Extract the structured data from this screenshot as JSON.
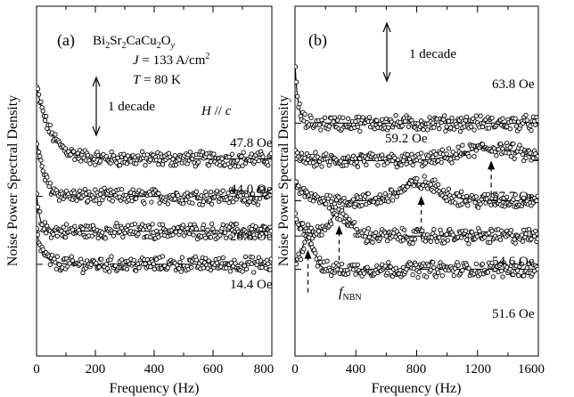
{
  "figure": {
    "ylabel": "Noise Power Spectral Density",
    "xlabel": "Frequency  (Hz)",
    "colors": {
      "axis": "#000000",
      "points": "#000000",
      "fit": "#000000"
    }
  },
  "chart_data": [
    {
      "type": "scatter",
      "panel_label": "(a)",
      "xlabel": "Frequency  (Hz)",
      "ylabel": "Noise Power Spectral Density",
      "xlim": [
        0,
        800
      ],
      "x_ticks": [
        "0",
        "200",
        "400",
        "600",
        "800"
      ],
      "log_scale_y": true,
      "scale_bar": "1 decade",
      "material": {
        "base": "Bi",
        "s1": "2",
        "b2": "Sr",
        "s2": "2",
        "b3": "CaCu",
        "s3": "2",
        "b4": "O",
        "s4": "y"
      },
      "conditions": {
        "J": {
          "sym": "J",
          "eq": " = 133 A/cm",
          "sup": "2"
        },
        "T": {
          "sym": "T",
          "eq": " = 80 K"
        },
        "H": {
          "sym": "H",
          "rel": " // ",
          "axis": "c"
        }
      },
      "series": [
        {
          "name": "47.8 Oe",
          "baseline": 0.4,
          "low_freq_amp": 1.35,
          "decay_hz": 48,
          "peak_hz": null,
          "peak_height": 0,
          "peak_width_hz": 0
        },
        {
          "name": "44.0 Oe",
          "baseline": -0.29,
          "low_freq_amp": 1.06,
          "decay_hz": 26,
          "peak_hz": null,
          "peak_height": 0,
          "peak_width_hz": 0
        },
        {
          "name": "28.8 Oe",
          "baseline": -0.93,
          "low_freq_amp": 0.7,
          "decay_hz": 11,
          "peak_hz": null,
          "peak_height": 0,
          "peak_width_hz": 0
        },
        {
          "name": "14.4 Oe",
          "baseline": -1.54,
          "low_freq_amp": 0.6,
          "decay_hz": 22,
          "peak_hz": null,
          "peak_height": 0,
          "peak_width_hz": 0
        }
      ]
    },
    {
      "type": "scatter",
      "panel_label": "(b)",
      "xlabel": "Frequency  (Hz)",
      "xlim": [
        0,
        1600
      ],
      "x_ticks": [
        "0",
        "400",
        "800",
        "1200",
        "1600"
      ],
      "log_scale_y": true,
      "scale_bar": "1 decade",
      "peak_label": {
        "base": "f",
        "sub": "NBN"
      },
      "series": [
        {
          "name": "63.8 Oe",
          "baseline": 1.06,
          "low_freq_amp": 1.1,
          "decay_hz": 20,
          "peak_hz": null,
          "peak_height": 0,
          "peak_width_hz": 0
        },
        {
          "name": "59.2 Oe",
          "baseline": 0.37,
          "low_freq_amp": 0.1,
          "decay_hz": 60,
          "peak_hz": 1290,
          "peak_height": 0.23,
          "peak_width_hz": 190
        },
        {
          "name": "57.7 Oe",
          "baseline": -0.37,
          "low_freq_amp": 0.35,
          "decay_hz": 60,
          "peak_hz": 830,
          "peak_height": 0.32,
          "peak_width_hz": 130
        },
        {
          "name": "54.6 Oe",
          "baseline": -1.02,
          "low_freq_amp": 0.35,
          "decay_hz": 60,
          "peak_hz": 290,
          "peak_height": 0.42,
          "peak_width_hz": 65
        },
        {
          "name": "51.6 Oe",
          "baseline": -1.63,
          "low_freq_amp": 0.05,
          "decay_hz": 40,
          "peak_hz": 85,
          "peak_height": 0.58,
          "peak_width_hz": 40
        }
      ]
    }
  ]
}
